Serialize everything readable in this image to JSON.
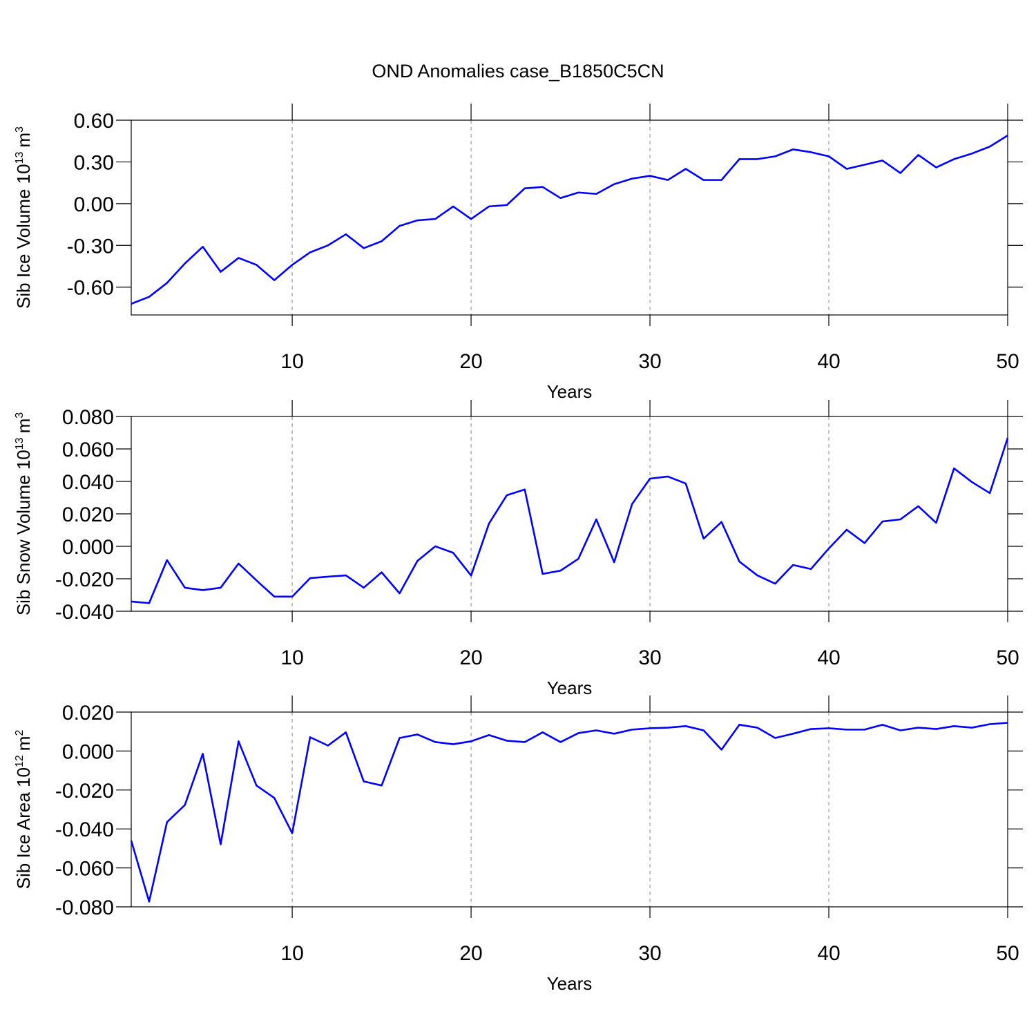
{
  "title": "OND Anomalies case_B1850C5CN",
  "chart_data": [
    {
      "type": "line",
      "xlabel": "Years",
      "ylabel": {
        "base": "Sib Ice Volume 10",
        "exp": "13",
        "unit": "m",
        "unit_exp": "3"
      },
      "x": [
        1,
        2,
        3,
        4,
        5,
        6,
        7,
        8,
        9,
        10,
        11,
        12,
        13,
        14,
        15,
        16,
        17,
        18,
        19,
        20,
        21,
        22,
        23,
        24,
        25,
        26,
        27,
        28,
        29,
        30,
        31,
        32,
        33,
        34,
        35,
        36,
        37,
        38,
        39,
        40,
        41,
        42,
        43,
        44,
        45,
        46,
        47,
        48,
        49,
        50
      ],
      "values": [
        -0.72,
        -0.67,
        -0.57,
        -0.43,
        -0.31,
        -0.49,
        -0.39,
        -0.44,
        -0.55,
        -0.44,
        -0.35,
        -0.3,
        -0.22,
        -0.32,
        -0.27,
        -0.16,
        -0.12,
        -0.11,
        -0.02,
        -0.11,
        -0.02,
        -0.01,
        0.11,
        0.12,
        0.04,
        0.08,
        0.07,
        0.14,
        0.18,
        0.2,
        0.17,
        0.25,
        0.17,
        0.17,
        0.32,
        0.32,
        0.34,
        0.39,
        0.37,
        0.34,
        0.25,
        0.28,
        0.31,
        0.22,
        0.35,
        0.26,
        0.32,
        0.36,
        0.41,
        0.49
      ],
      "color": "#0000ff",
      "xlim": [
        1,
        50
      ],
      "xticks": [
        10,
        20,
        30,
        40,
        50
      ],
      "ylim": [
        -0.8,
        0.6
      ],
      "yticks": [
        {
          "value": -0.6,
          "label": "-0.60"
        },
        {
          "value": -0.3,
          "label": "-0.30"
        },
        {
          "value": 0,
          "label": "0.00"
        },
        {
          "value": 0.3,
          "label": "0.30"
        },
        {
          "value": 0.6,
          "label": "0.60"
        }
      ],
      "grid": "x"
    },
    {
      "type": "line",
      "xlabel": "Years",
      "ylabel": {
        "base": "Sib Snow Volume 10",
        "exp": "13",
        "unit": "m",
        "unit_exp": "3"
      },
      "x": [
        1,
        2,
        3,
        4,
        5,
        6,
        7,
        8,
        9,
        10,
        11,
        12,
        13,
        14,
        15,
        16,
        17,
        18,
        19,
        20,
        21,
        22,
        23,
        24,
        25,
        26,
        27,
        28,
        29,
        30,
        31,
        32,
        33,
        34,
        35,
        36,
        37,
        38,
        39,
        40,
        41,
        42,
        43,
        44,
        45,
        46,
        47,
        48,
        49,
        50
      ],
      "values": [
        -0.034,
        -0.035,
        -0.0085,
        -0.0255,
        -0.027,
        -0.0255,
        -0.0106,
        -0.021,
        -0.031,
        -0.031,
        -0.0196,
        -0.0187,
        -0.0179,
        -0.0255,
        -0.016,
        -0.029,
        -0.009,
        0.0,
        -0.004,
        -0.018,
        0.014,
        0.0315,
        0.035,
        -0.017,
        -0.015,
        -0.0077,
        0.0166,
        -0.0098,
        0.026,
        0.0417,
        0.043,
        0.0387,
        0.0047,
        0.015,
        -0.0094,
        -0.0179,
        -0.023,
        -0.0115,
        -0.014,
        -0.0013,
        0.0102,
        0.002,
        0.0153,
        0.0166,
        0.0247,
        0.0145,
        0.048,
        0.0396,
        0.0328,
        0.0668
      ],
      "color": "#0000ff",
      "xlim": [
        1,
        50
      ],
      "xticks": [
        10,
        20,
        30,
        40,
        50
      ],
      "ylim": [
        -0.04,
        0.08
      ],
      "yticks": [
        {
          "value": -0.04,
          "label": "-0.040"
        },
        {
          "value": -0.02,
          "label": "-0.020"
        },
        {
          "value": 0,
          "label": "0.000"
        },
        {
          "value": 0.02,
          "label": "0.020"
        },
        {
          "value": 0.04,
          "label": "0.040"
        },
        {
          "value": 0.06,
          "label": "0.060"
        },
        {
          "value": 0.08,
          "label": "0.080"
        }
      ],
      "grid": "x"
    },
    {
      "type": "line",
      "xlabel": "Years",
      "ylabel": {
        "base": "Sib Ice Area 10",
        "exp": "12",
        "unit": "m",
        "unit_exp": "2"
      },
      "x": [
        1,
        2,
        3,
        4,
        5,
        6,
        7,
        8,
        9,
        10,
        11,
        12,
        13,
        14,
        15,
        16,
        17,
        18,
        19,
        20,
        21,
        22,
        23,
        24,
        25,
        26,
        27,
        28,
        29,
        30,
        31,
        32,
        33,
        34,
        35,
        36,
        37,
        38,
        39,
        40,
        41,
        42,
        43,
        44,
        45,
        46,
        47,
        48,
        49,
        50
      ],
      "values": [
        -0.046,
        -0.0773,
        -0.0365,
        -0.0277,
        -0.0014,
        -0.0479,
        0.005,
        -0.0177,
        -0.0241,
        -0.0422,
        0.0071,
        0.0028,
        0.0096,
        -0.0156,
        -0.0177,
        0.0067,
        0.0085,
        0.0046,
        0.0035,
        0.005,
        0.0082,
        0.0053,
        0.0046,
        0.0096,
        0.0046,
        0.0092,
        0.0106,
        0.0089,
        0.011,
        0.0117,
        0.012,
        0.0128,
        0.0106,
        0.0007,
        0.0135,
        0.012,
        0.0067,
        0.0089,
        0.0113,
        0.0117,
        0.011,
        0.011,
        0.0135,
        0.0106,
        0.012,
        0.0113,
        0.0128,
        0.012,
        0.0138,
        0.0145
      ],
      "color": "#0000ff",
      "xlim": [
        1,
        50
      ],
      "xticks": [
        10,
        20,
        30,
        40,
        50
      ],
      "ylim": [
        -0.08,
        0.02
      ],
      "yticks": [
        {
          "value": -0.08,
          "label": "-0.080"
        },
        {
          "value": -0.06,
          "label": "-0.060"
        },
        {
          "value": -0.04,
          "label": "-0.040"
        },
        {
          "value": -0.02,
          "label": "-0.020"
        },
        {
          "value": 0,
          "label": "0.000"
        },
        {
          "value": 0.02,
          "label": "0.020"
        }
      ],
      "grid": "x"
    }
  ]
}
